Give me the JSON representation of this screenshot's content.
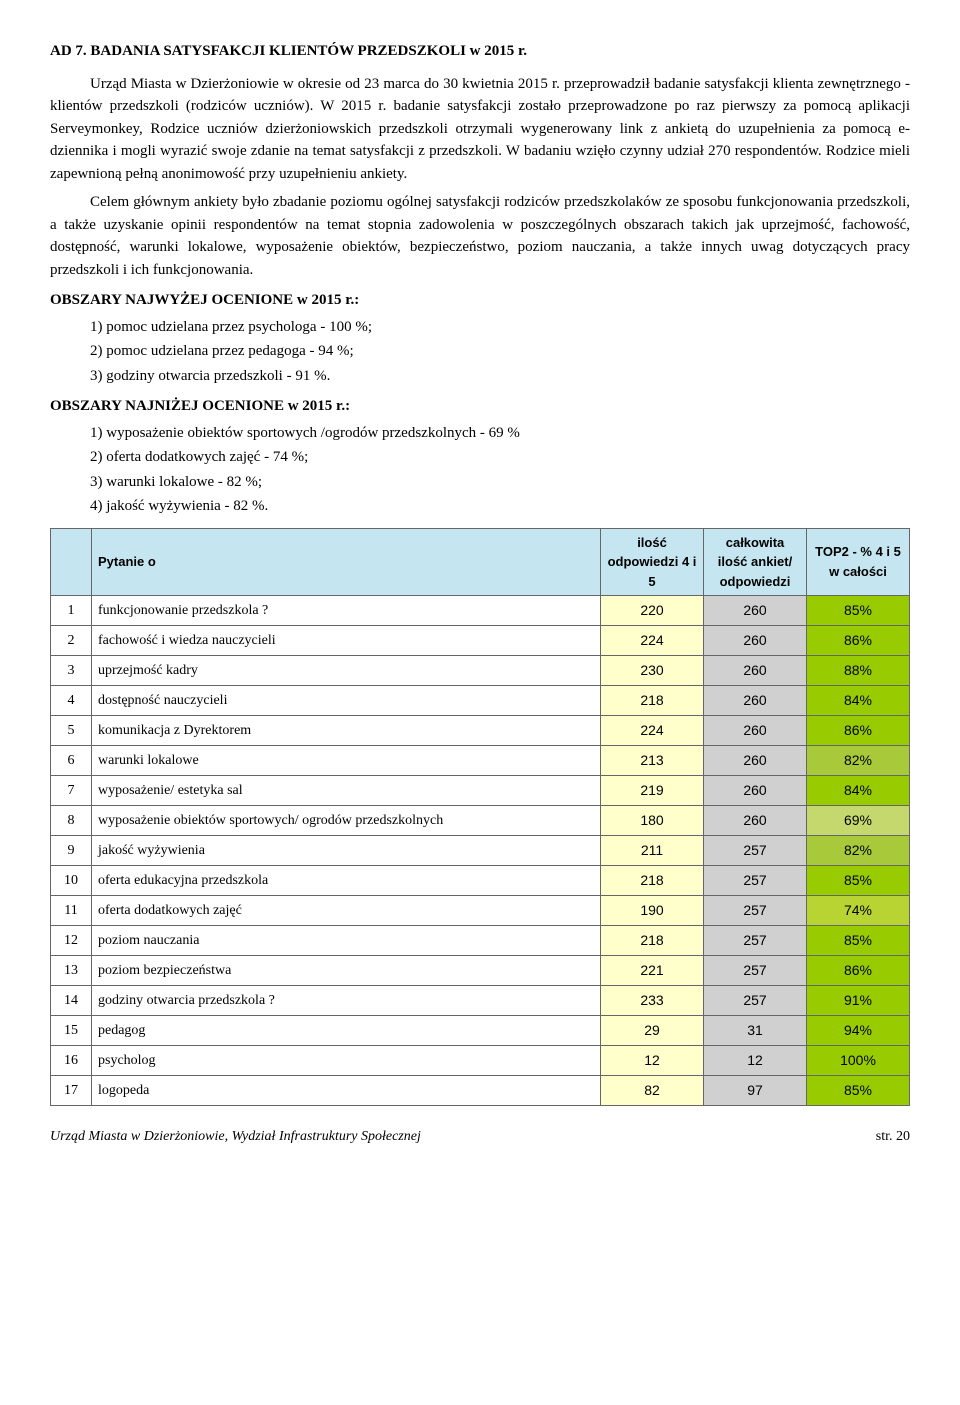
{
  "title": "AD 7. BADANIA SATYSFAKCJI KLIENTÓW PRZEDSZKOLI w 2015 r.",
  "para1": "Urząd Miasta w Dzierżoniowie w okresie od 23 marca do 30 kwietnia 2015 r. przeprowadził badanie satysfakcji klienta zewnętrznego - klientów przedszkoli (rodziców uczniów). W 2015 r. badanie satysfakcji zostało przeprowadzone po raz pierwszy za pomocą aplikacji Serveymonkey, Rodzice uczniów dzierżoniowskich przedszkoli otrzymali wygenerowany link z ankietą do uzupełnienia za pomocą e-dziennika i mogli wyrazić swoje zdanie na temat satysfakcji z przedszkoli. W badaniu wzięło czynny udział 270 respondentów.  Rodzice mieli zapewnioną pełną anonimowość  przy uzupełnieniu ankiety.",
  "para2": "Celem głównym ankiety było zbadanie poziomu ogólnej satysfakcji rodziców przedszkolaków ze sposobu funkcjonowania przedszkoli, a także uzyskanie opinii respondentów na temat stopnia zadowolenia w poszczególnych obszarach takich jak uprzejmość, fachowość, dostępność, warunki lokalowe, wyposażenie obiektów, bezpieczeństwo, poziom nauczania, a także innych uwag dotyczących pracy przedszkoli i ich funkcjonowania.",
  "heading_high": "OBSZARY NAJWYŻEJ OCENIONE w 2015 r.:",
  "high_items": [
    "1)  pomoc udzielana przez psychologa -  100 %;",
    "2)  pomoc udzielana przez pedagoga -  94 %;",
    "3)  godziny otwarcia przedszkoli - 91 %."
  ],
  "heading_low": "OBSZARY NAJNIŻEJ OCENIONE w 2015 r.:",
  "low_items": [
    "1)  wyposażenie obiektów sportowych /ogrodów przedszkolnych - 69 %",
    "2)  oferta dodatkowych zajęć - 74 %;",
    "3)  warunki lokalowe - 82 %;",
    "4)  jakość wyżywienia  - 82 %."
  ],
  "table": {
    "header_q": "Pytanie o",
    "header_c1": "ilość odpowiedzi 4 i 5",
    "header_c2": "całkowita ilość ankiet/ odpowiedzi",
    "header_c3": "TOP2 - % 4 i 5 w całości",
    "colors": {
      "header_bg": "#c5e6f0",
      "c1_bg": "#ffffcc",
      "c2_bg": "#d0d0d0",
      "top_high": "#99cc00",
      "top_mid": "#b8d432",
      "top_low": "#c5d86d"
    },
    "rows": [
      {
        "n": "1",
        "q": "funkcjonowanie przedszkola ?",
        "c1": "220",
        "c2": "260",
        "c3": "85%",
        "c3bg": "#99cc00"
      },
      {
        "n": "2",
        "q": "fachowość i wiedza nauczycieli",
        "c1": "224",
        "c2": "260",
        "c3": "86%",
        "c3bg": "#99cc00"
      },
      {
        "n": "3",
        "q": "uprzejmość kadry",
        "c1": "230",
        "c2": "260",
        "c3": "88%",
        "c3bg": "#99cc00"
      },
      {
        "n": "4",
        "q": "dostępność nauczycieli",
        "c1": "218",
        "c2": "260",
        "c3": "84%",
        "c3bg": "#99cc00"
      },
      {
        "n": "5",
        "q": "komunikacja z Dyrektorem",
        "c1": "224",
        "c2": "260",
        "c3": "86%",
        "c3bg": "#99cc00"
      },
      {
        "n": "6",
        "q": "warunki lokalowe",
        "c1": "213",
        "c2": "260",
        "c3": "82%",
        "c3bg": "#a8c93a"
      },
      {
        "n": "7",
        "q": "wyposażenie/ estetyka sal",
        "c1": "219",
        "c2": "260",
        "c3": "84%",
        "c3bg": "#99cc00"
      },
      {
        "n": "8",
        "q": "wyposażenie obiektów sportowych/ ogrodów przedszkolnych",
        "c1": "180",
        "c2": "260",
        "c3": "69%",
        "c3bg": "#c5d86d"
      },
      {
        "n": "9",
        "q": "jakość wyżywienia",
        "c1": "211",
        "c2": "257",
        "c3": "82%",
        "c3bg": "#a8c93a"
      },
      {
        "n": "10",
        "q": "oferta edukacyjna przedszkola",
        "c1": "218",
        "c2": "257",
        "c3": "85%",
        "c3bg": "#99cc00"
      },
      {
        "n": "11",
        "q": "oferta dodatkowych zajęć",
        "c1": "190",
        "c2": "257",
        "c3": "74%",
        "c3bg": "#b8d432"
      },
      {
        "n": "12",
        "q": "poziom nauczania",
        "c1": "218",
        "c2": "257",
        "c3": "85%",
        "c3bg": "#99cc00"
      },
      {
        "n": "13",
        "q": "poziom bezpieczeństwa",
        "c1": "221",
        "c2": "257",
        "c3": "86%",
        "c3bg": "#99cc00"
      },
      {
        "n": "14",
        "q": "godziny otwarcia przedszkola ?",
        "c1": "233",
        "c2": "257",
        "c3": "91%",
        "c3bg": "#99cc00"
      },
      {
        "n": "15",
        "q": "pedagog",
        "c1": "29",
        "c2": "31",
        "c3": "94%",
        "c3bg": "#99cc00"
      },
      {
        "n": "16",
        "q": "psycholog",
        "c1": "12",
        "c2": "12",
        "c3": "100%",
        "c3bg": "#99cc00"
      },
      {
        "n": "17",
        "q": "logopeda",
        "c1": "82",
        "c2": "97",
        "c3": "85%",
        "c3bg": "#99cc00"
      }
    ]
  },
  "footer_left": "Urząd Miasta w Dzierżoniowie, Wydział Infrastruktury Społecznej",
  "footer_right_label": "str.",
  "footer_right_num": "20"
}
